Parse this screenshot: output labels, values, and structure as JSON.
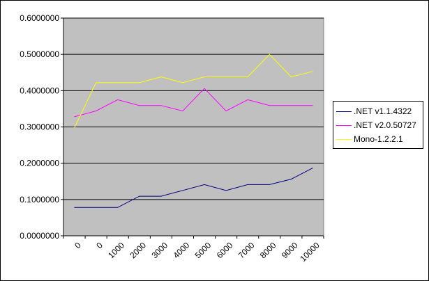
{
  "chart_data": {
    "type": "line",
    "title": "",
    "xlabel": "",
    "ylabel": "",
    "categories": [
      "0",
      "0",
      "1000",
      "2000",
      "3000",
      "4000",
      "5000",
      "6000",
      "7000",
      "8000",
      "9000",
      "10000"
    ],
    "ylim": [
      0,
      0.6
    ],
    "yticks": [
      "0.0000000",
      "0.1000000",
      "0.2000000",
      "0.3000000",
      "0.4000000",
      "0.5000000",
      "0.6000000"
    ],
    "grid": true,
    "legend_position": "right",
    "plot_background": "#c0c0c0",
    "series": [
      {
        "name": ".NET v1.1.4322",
        "color": "#000080",
        "values": [
          0.078,
          0.078,
          0.078,
          0.109,
          0.109,
          0.125,
          0.141,
          0.125,
          0.141,
          0.141,
          0.156,
          0.187
        ]
      },
      {
        "name": ".NET v2.0.50727",
        "color": "#ff00ff",
        "values": [
          0.328,
          0.344,
          0.375,
          0.359,
          0.359,
          0.344,
          0.406,
          0.344,
          0.375,
          0.359,
          0.359,
          0.359
        ]
      },
      {
        "name": "Mono-1.2.2.1",
        "color": "#ffff00",
        "values": [
          0.297,
          0.422,
          0.422,
          0.422,
          0.438,
          0.422,
          0.438,
          0.438,
          0.438,
          0.5,
          0.438,
          0.453
        ]
      }
    ]
  }
}
